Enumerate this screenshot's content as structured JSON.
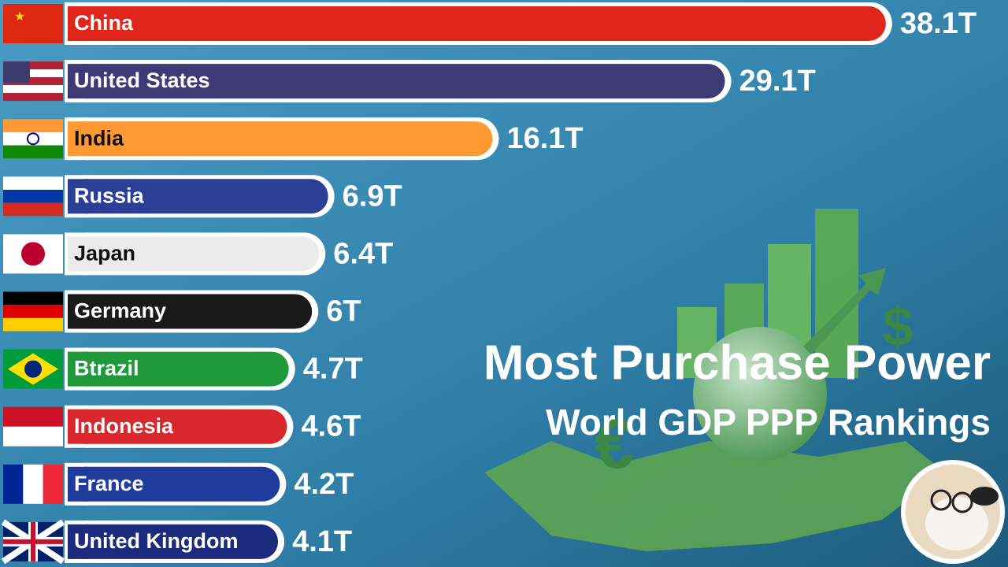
{
  "chart_data": {
    "type": "bar",
    "orientation": "horizontal",
    "title": "Most Purchase Power",
    "subtitle": "World GDP PPP Rankings",
    "categories": [
      "China",
      "United States",
      "India",
      "Russia",
      "Japan",
      "Germany",
      "Btrazil",
      "Indonesia",
      "France",
      "United Kingdom"
    ],
    "values": [
      38.1,
      29.1,
      16.1,
      6.9,
      6.4,
      6,
      4.7,
      4.6,
      4.2,
      4.1
    ],
    "value_labels": [
      "38.1T",
      "29.1T",
      "16.1T",
      "6.9T",
      "6.4T",
      "6T",
      "4.7T",
      "4.6T",
      "4.2T",
      "4.1T"
    ],
    "colors": [
      "#e0261a",
      "#3d3a75",
      "#ff9a33",
      "#2c3f97",
      "#ebebeb",
      "#1a1a1a",
      "#1f9a3a",
      "#d9272e",
      "#1f3b9c",
      "#1c2b7c"
    ]
  }
}
